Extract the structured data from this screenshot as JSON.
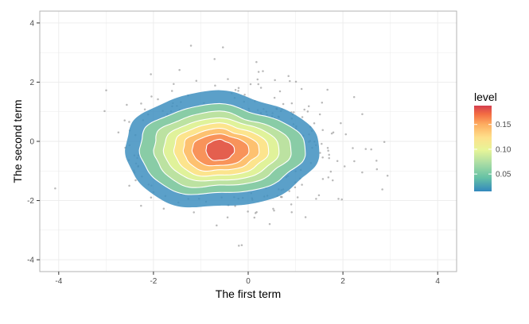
{
  "chart_data": {
    "type": "contour-density-scatter",
    "title": "",
    "xlabel": "The first term",
    "ylabel": "The second term",
    "xlim": [
      -4.4,
      4.4
    ],
    "ylim": [
      -4.4,
      4.4
    ],
    "x_ticks": [
      -4,
      -2,
      0,
      2,
      4
    ],
    "y_ticks": [
      -4,
      -2,
      0,
      2,
      4
    ],
    "x_tick_labels": [
      "-4",
      "-2",
      "0",
      "2",
      "4"
    ],
    "y_tick_labels": [
      "-4",
      "-2",
      "0",
      "2",
      "4"
    ],
    "grid": true,
    "legend": {
      "title": "level",
      "position": "right",
      "range": [
        0.015,
        0.188
      ],
      "ticks": [
        0.05,
        0.1,
        0.15
      ],
      "tick_labels": [
        "0.05",
        "0.10",
        "0.15"
      ],
      "colors": [
        "#3288bd",
        "#66c2a5",
        "#abdda4",
        "#e6f598",
        "#fee08b",
        "#fdae61",
        "#f46d43",
        "#d53e4f"
      ]
    },
    "contours": {
      "center": [
        -0.6,
        -0.3
      ],
      "levels": [
        {
          "level": 0.02,
          "color": "#3e8fc0",
          "rx": 2.05,
          "ry": 1.95
        },
        {
          "level": 0.04,
          "color": "#8ccfa4",
          "rx": 1.75,
          "ry": 1.5
        },
        {
          "level": 0.06,
          "color": "#bfe3a0",
          "rx": 1.45,
          "ry": 1.25
        },
        {
          "level": 0.08,
          "color": "#e1f29a",
          "rx": 1.22,
          "ry": 1.05
        },
        {
          "level": 0.1,
          "color": "#fde38c",
          "rx": 1.0,
          "ry": 0.88
        },
        {
          "level": 0.12,
          "color": "#fdbf6f",
          "rx": 0.8,
          "ry": 0.7
        },
        {
          "level": 0.14,
          "color": "#f89058",
          "rx": 0.6,
          "ry": 0.53
        },
        {
          "level": 0.16,
          "color": "#e35c4e",
          "rx": 0.3,
          "ry": 0.35
        }
      ]
    },
    "scatter": {
      "n_points": 600,
      "center": [
        -0.3,
        -0.2
      ],
      "sd": [
        1.05,
        1.05
      ],
      "seed": 7
    }
  }
}
